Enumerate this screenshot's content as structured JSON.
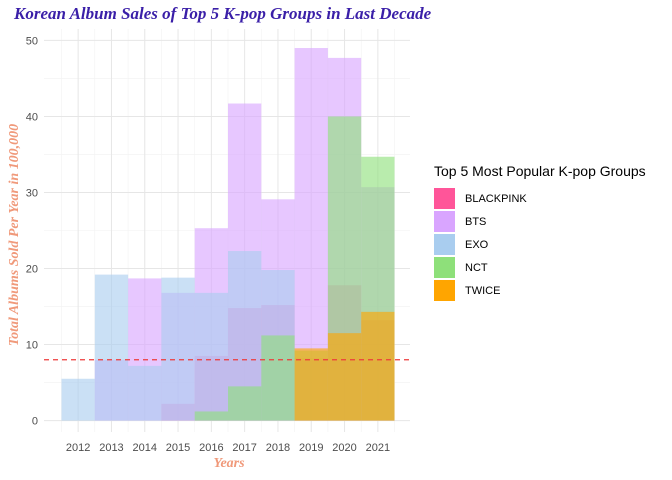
{
  "chart_data": {
    "type": "bar",
    "title": "Korean Album Sales of Top 5 K-pop Groups in Last Decade",
    "xlabel": "Years",
    "ylabel": "Total Albums Sold Per Year in 100,000",
    "categories": [
      "2012",
      "2013",
      "2014",
      "2015",
      "2016",
      "2017",
      "2018",
      "2019",
      "2020",
      "2021"
    ],
    "ylim": [
      -1.5,
      51.5
    ],
    "yticks": [
      0,
      10,
      20,
      30,
      40,
      50
    ],
    "grid": true,
    "legend_position": "right",
    "legend_title": "Top 5 Most Popular K-pop Groups",
    "reference_line": {
      "y": 8,
      "style": "dashed",
      "color": "#ee3b3b"
    },
    "series": [
      {
        "name": "BLACKPINK",
        "color": "#ff5599",
        "values": [
          0,
          0,
          0,
          2.2,
          8.5,
          14.8,
          15.2,
          8.2,
          17.8,
          13.2
        ]
      },
      {
        "name": "BTS",
        "color": "#d9a5ff",
        "values": [
          0,
          8,
          18.7,
          16.8,
          25.3,
          41.7,
          29.1,
          49.0,
          47.7,
          30.7
        ]
      },
      {
        "name": "EXO",
        "color": "#a9cdef",
        "values": [
          5.5,
          19.2,
          7.2,
          18.8,
          16.8,
          22.3,
          19.8,
          0,
          0,
          0
        ]
      },
      {
        "name": "NCT",
        "color": "#8ee07a",
        "values": [
          0,
          0,
          0,
          0,
          1.2,
          4.5,
          11.2,
          9.2,
          40.0,
          34.7
        ]
      },
      {
        "name": "TWICE",
        "color": "#ffa500",
        "values": [
          0,
          0,
          0,
          0,
          0,
          0,
          0,
          9.5,
          11.5,
          14.3
        ]
      }
    ]
  }
}
